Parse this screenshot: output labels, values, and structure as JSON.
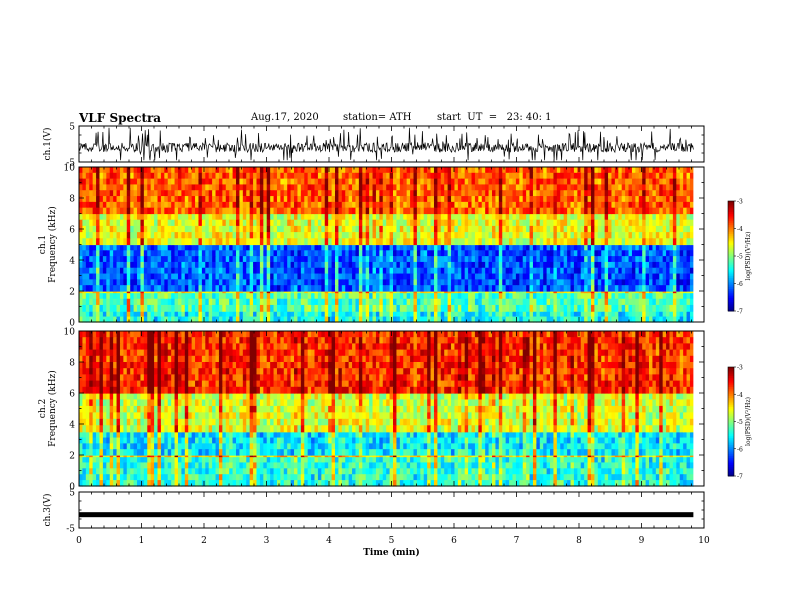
{
  "header": {
    "title": "VLF Spectra",
    "date": "Aug.17, 2020",
    "station": "station= ATH",
    "start": "start  UT  =   23: 40: 1"
  },
  "chart_data": [
    {
      "type": "line",
      "panel": "ch1-waveform",
      "ylabel": "ch.1(V)",
      "ylim": [
        -5,
        5
      ],
      "yticks": [
        "5",
        "-5"
      ],
      "xlim": [
        0,
        10
      ],
      "x_end_data": 9.83,
      "description": "noisy waveform centered near -1 V with spikes up to about +4 V and down to -4 V"
    },
    {
      "type": "heatmap",
      "panel": "ch1-spectrogram",
      "ylabel": "ch.1\nFrequency (kHz)",
      "ylim": [
        0,
        10
      ],
      "yticks": [
        "0",
        "2",
        "4",
        "6",
        "8",
        "10"
      ],
      "xlim": [
        0,
        10
      ],
      "x_end_data": 9.83,
      "colorbar": {
        "label": "log(PSD)(V²/Hz)",
        "range": [
          -7,
          -3
        ],
        "ticks": [
          "-3",
          "-4",
          "-5",
          "-6",
          "-7"
        ]
      },
      "bands_khz_logpsd": [
        {
          "from": 0.0,
          "to": 0.7,
          "value": -5.5
        },
        {
          "from": 0.7,
          "to": 1.9,
          "value": -5.2
        },
        {
          "from": 1.9,
          "to": 2.0,
          "value": -4.6
        },
        {
          "from": 2.0,
          "to": 5.0,
          "value": -6.2
        },
        {
          "from": 5.0,
          "to": 7.0,
          "value": -4.6
        },
        {
          "from": 7.0,
          "to": 10.0,
          "value": -3.9
        }
      ]
    },
    {
      "type": "heatmap",
      "panel": "ch2-spectrogram",
      "ylabel": "ch.2\nFrequency (kHz)",
      "ylim": [
        0,
        10
      ],
      "yticks": [
        "0",
        "2",
        "4",
        "6",
        "8",
        "10"
      ],
      "xlim": [
        0,
        10
      ],
      "x_end_data": 9.83,
      "colorbar": {
        "label": "log(PSD)(V²/Hz)",
        "range": [
          -7,
          -3
        ],
        "ticks": [
          "-3",
          "-4",
          "-5",
          "-6",
          "-7"
        ]
      },
      "bands_khz_logpsd": [
        {
          "from": 0.0,
          "to": 1.9,
          "value": -5.4
        },
        {
          "from": 1.9,
          "to": 2.0,
          "value": -4.4
        },
        {
          "from": 2.0,
          "to": 3.5,
          "value": -5.6
        },
        {
          "from": 3.5,
          "to": 6.0,
          "value": -4.7
        },
        {
          "from": 6.0,
          "to": 10.0,
          "value": -3.7
        }
      ]
    },
    {
      "type": "line",
      "panel": "ch3-waveform",
      "ylabel": "ch.3(V)",
      "ylim": [
        -5,
        5
      ],
      "yticks": [
        "5",
        "-5"
      ],
      "xlim": [
        0,
        10
      ],
      "x_end_data": 9.83,
      "level": -1.3,
      "description": "nearly flat thick trace around -1.3 V"
    }
  ],
  "xaxis": {
    "label": "Time (min)",
    "ticks": [
      "0",
      "1",
      "2",
      "3",
      "4",
      "5",
      "6",
      "7",
      "8",
      "9",
      "10"
    ]
  }
}
